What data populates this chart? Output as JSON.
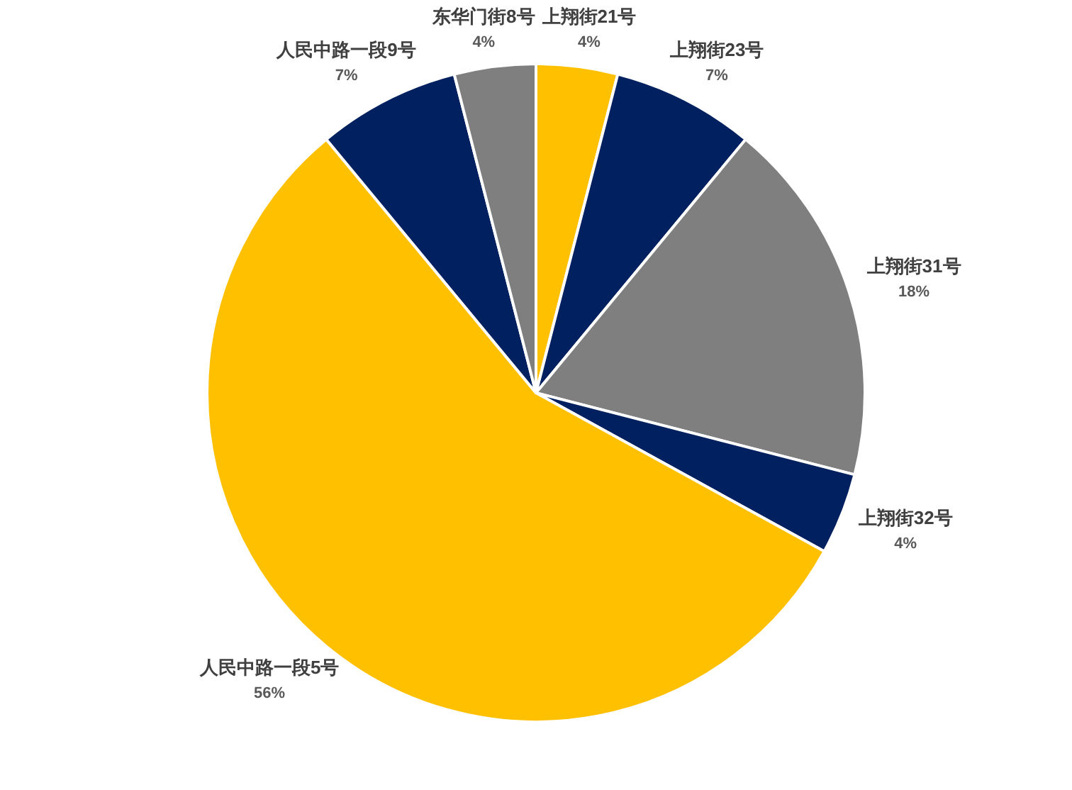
{
  "chart_data": {
    "type": "pie",
    "categories": [
      "上翔街21号",
      "上翔街23号",
      "上翔街31号",
      "上翔街32号",
      "人民中路一段5号",
      "人民中路一段9号",
      "东华门街8号"
    ],
    "values": [
      4,
      7,
      18,
      4,
      56,
      7,
      4
    ],
    "colors": [
      "#ffc000",
      "#002060",
      "#7f7f7f",
      "#002060",
      "#ffc000",
      "#002060",
      "#7f7f7f"
    ],
    "value_labels": [
      "4%",
      "7%",
      "18%",
      "4%",
      "56%",
      "7%",
      "4%"
    ]
  }
}
